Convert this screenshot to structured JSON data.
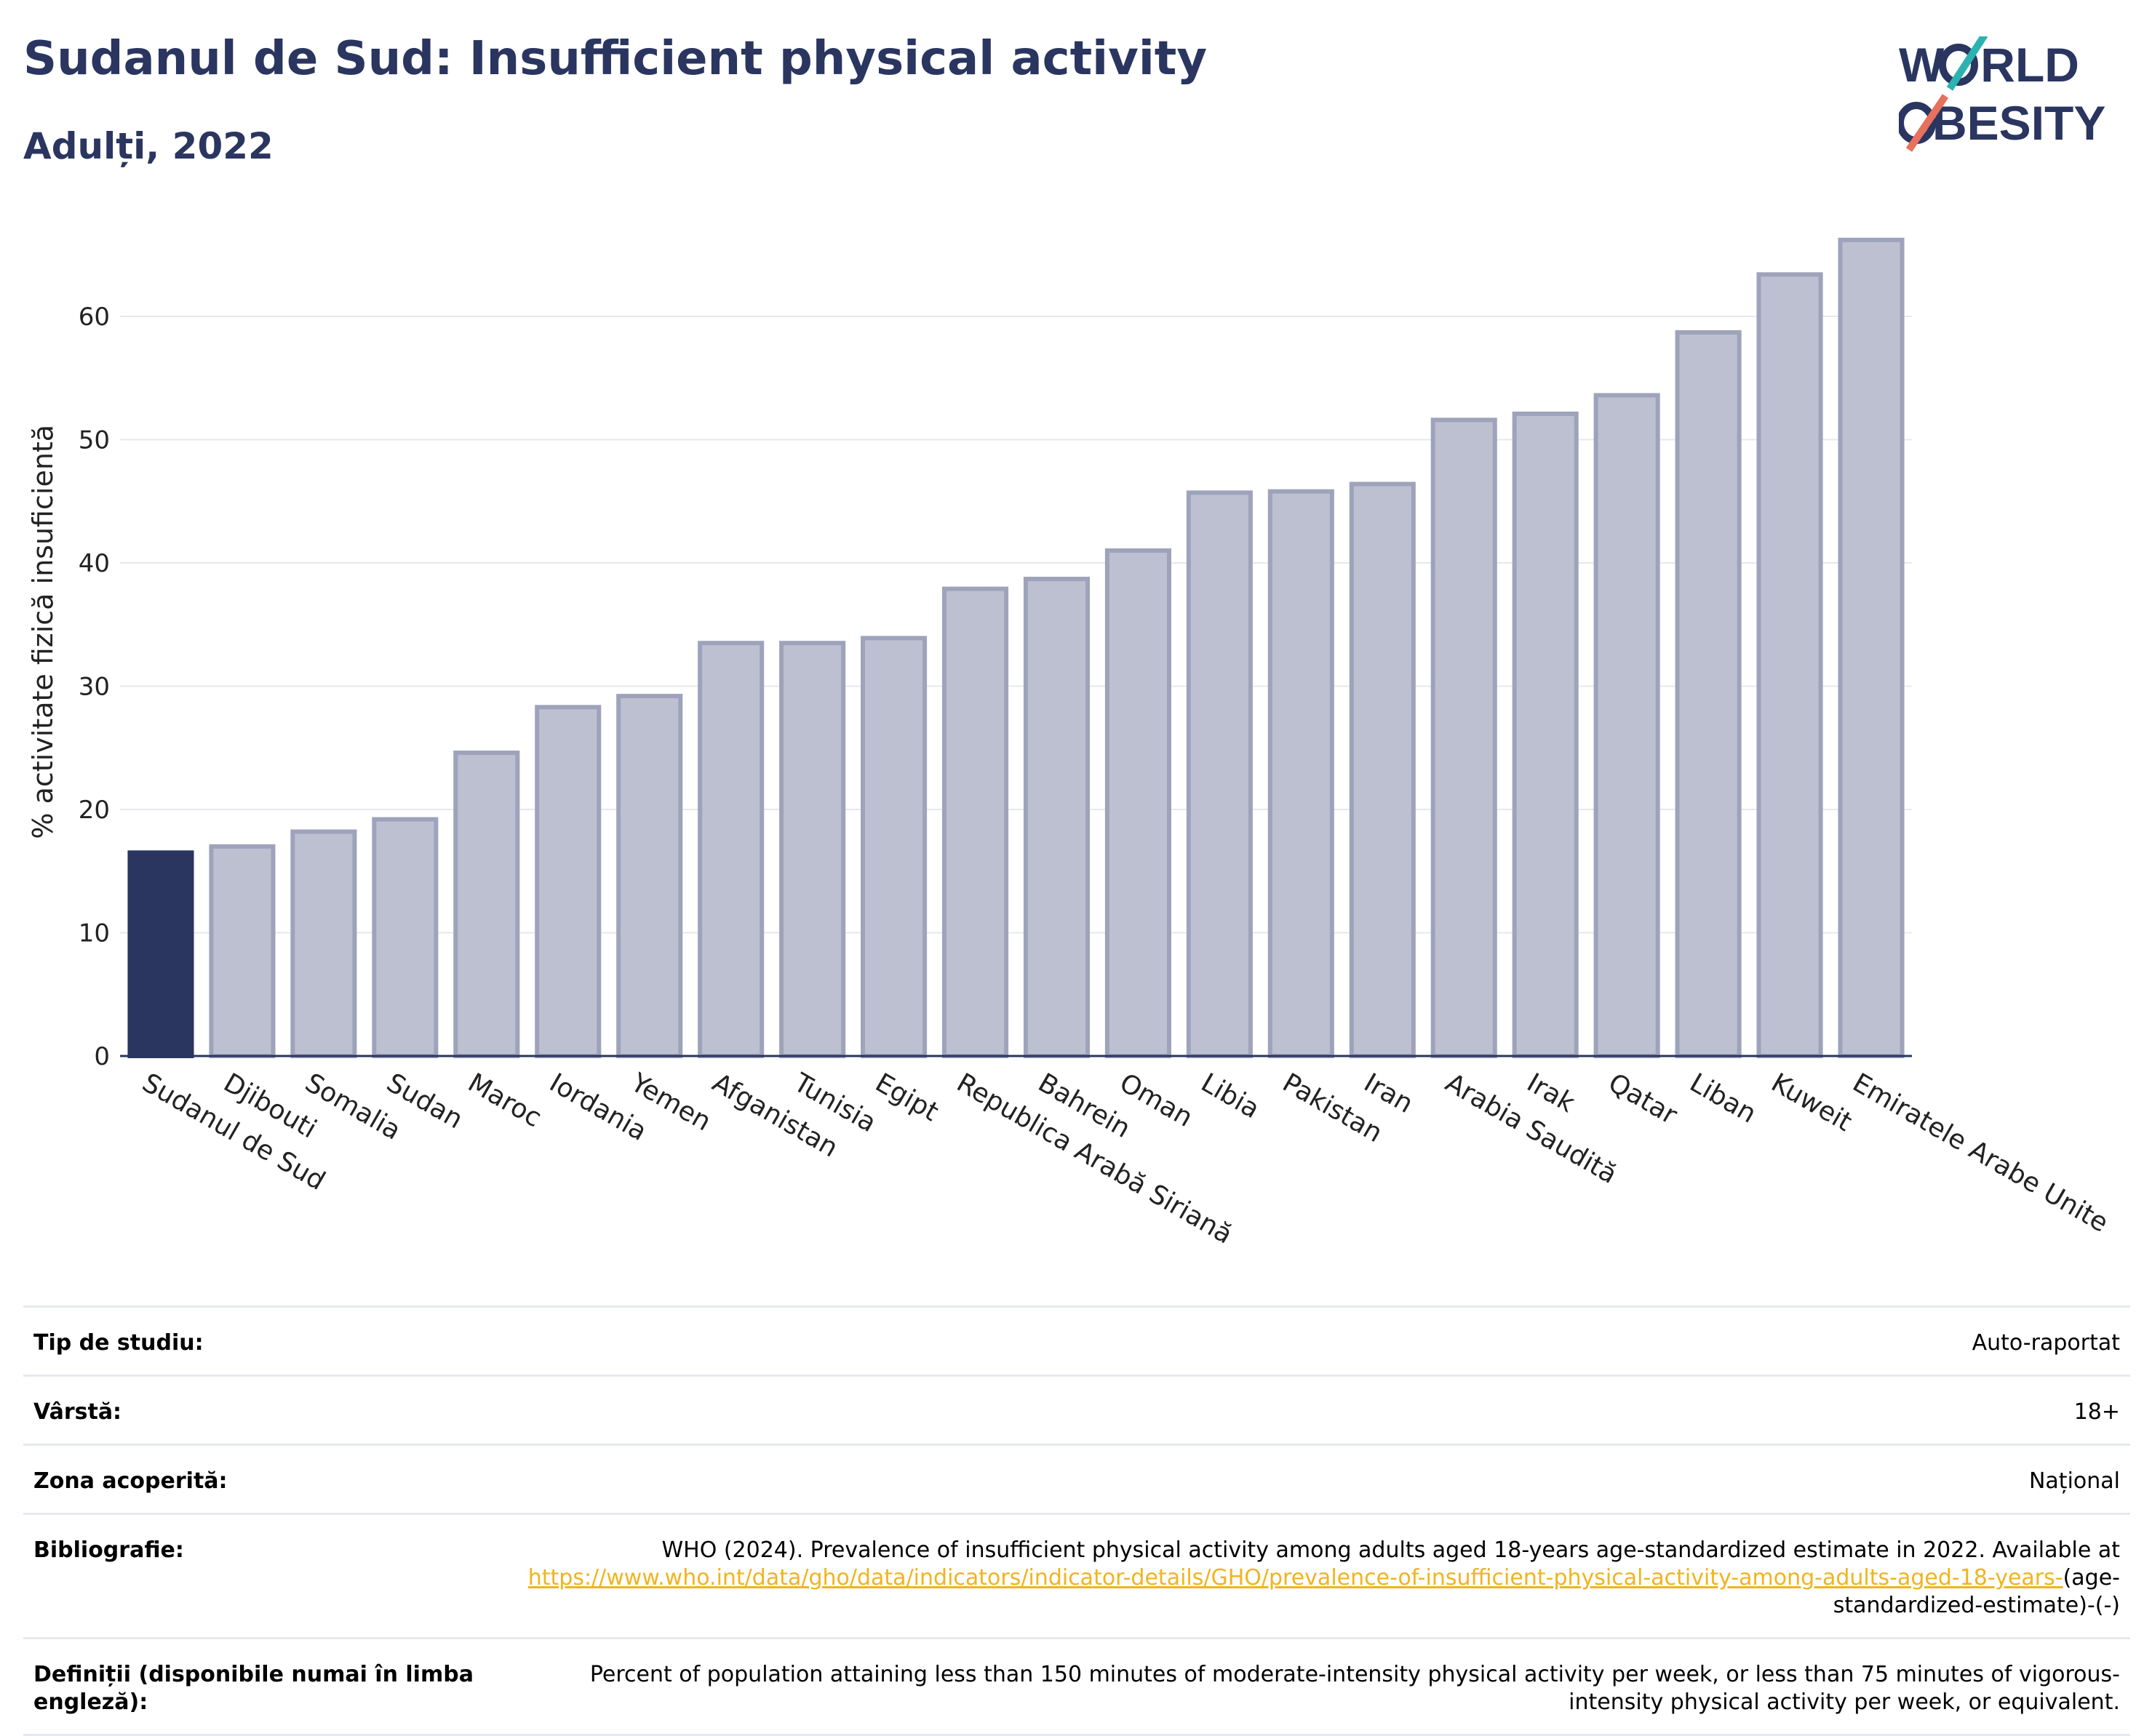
{
  "header": {
    "title": "Sudanul de Sud: Insufficient physical activity",
    "subtitle": "Adulți, 2022"
  },
  "logo": {
    "line1": "W",
    "line1b": "RLD",
    "line2": "BESITY",
    "accent_teal": "#2bb3b1",
    "accent_coral": "#e8705c"
  },
  "colors": {
    "highlight": "#2a3560",
    "bar_fill": "#bcc0d0",
    "bar_stroke": "#9ea3bb",
    "grid": "#e6e8ee"
  },
  "chart_data": {
    "type": "bar",
    "title": "Sudanul de Sud: Insufficient physical activity",
    "subtitle": "Adulți, 2022",
    "xlabel": "",
    "ylabel": "% activitate fizică insuficientă",
    "ylim": [
      0,
      70
    ],
    "yticks": [
      0,
      10,
      20,
      30,
      40,
      50,
      60
    ],
    "grid": true,
    "highlight_category": "Sudanul de Sud",
    "categories": [
      "Sudanul de Sud",
      "Djibouti",
      "Somalia",
      "Sudan",
      "Maroc",
      "Iordania",
      "Yemen",
      "Afganistan",
      "Tunisia",
      "Egipt",
      "Republica Arabă Siriană",
      "Bahrein",
      "Oman",
      "Libia",
      "Pakistan",
      "Iran",
      "Arabia Saudită",
      "Irak",
      "Qatar",
      "Liban",
      "Kuweit",
      "Emiratele Arabe Unite"
    ],
    "values": [
      16.5,
      17.0,
      18.2,
      19.2,
      24.6,
      28.3,
      29.2,
      33.5,
      33.5,
      33.9,
      37.9,
      38.7,
      41.0,
      45.7,
      45.8,
      46.4,
      51.6,
      52.1,
      53.6,
      58.7,
      63.4,
      66.2
    ]
  },
  "details": [
    {
      "label": "Tip de studiu:",
      "value": "Auto-raportat"
    },
    {
      "label": "Vârstă:",
      "value": "18+"
    },
    {
      "label": "Zona acoperită:",
      "value": "Național"
    },
    {
      "label": "Bibliografie:",
      "value": "WHO (2024). Prevalence of insufficient physical activity among adults aged 18-years age-standardized estimate in 2022. Available at",
      "link": "https://www.who.int/data/gho/data/indicators/indicator-details/GHO/prevalence-of-insufficient-physical-activity-among-adults-aged-18-years-",
      "suffix": "(age-standardized-estimate)-(-)"
    },
    {
      "label": "Definiții (disponibile numai în limba engleză):",
      "value": "Percent of population attaining less than 150 minutes of moderate-intensity physical activity per week, or less than 75 minutes of vigorous-intensity physical activity per week, or equivalent."
    }
  ]
}
